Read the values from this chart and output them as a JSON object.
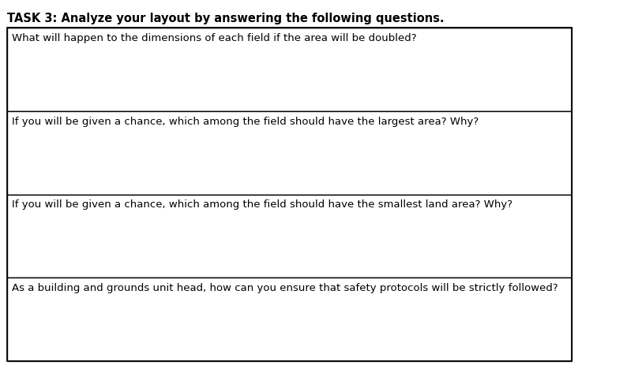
{
  "title": "TASK 3: Analyze your layout by answering the following questions.",
  "questions": [
    "What will happen to the dimensions of each field if the area will be doubled?",
    "If you will be given a chance, which among the field should have the largest area? Why?",
    "If you will be given a chance, which among the field should have the smallest land area? Why?",
    "As a building and grounds unit head, how can you ensure that safety protocols will be strictly followed?"
  ],
  "bg_color": "#ffffff",
  "border_color": "#000000",
  "title_fontsize": 10.5,
  "question_fontsize": 9.5,
  "title_font_weight": "bold"
}
